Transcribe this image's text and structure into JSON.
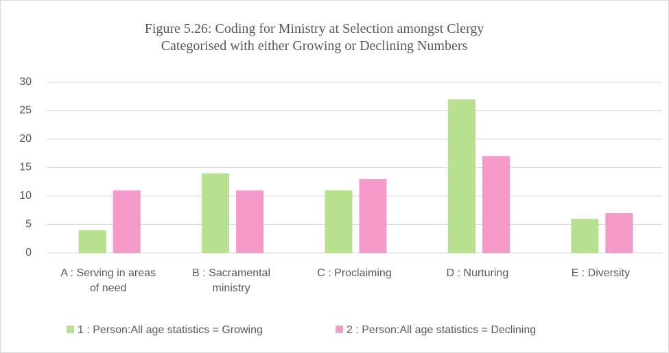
{
  "chart_data": {
    "type": "bar",
    "title": "Figure 5.26: Coding for Ministry at Selection amongst Clergy Categorised with either Growing or Declining Numbers",
    "categories": [
      "A : Serving in areas of need",
      "B : Sacramental ministry",
      "C : Proclaiming",
      "D : Nurturing",
      "E : Diversity"
    ],
    "series": [
      {
        "name": "1 : Person:All age statistics = Growing",
        "color": "#b9e08e",
        "values": [
          4,
          14,
          11,
          27,
          6
        ]
      },
      {
        "name": "2 : Person:All age statistics = Declining",
        "color": "#f59bc9",
        "values": [
          11,
          11,
          13,
          17,
          7
        ]
      }
    ],
    "ylim": [
      0,
      30
    ],
    "yticks": [
      0,
      5,
      10,
      15,
      20,
      25,
      30
    ],
    "grid": true,
    "legend": "bottom"
  }
}
